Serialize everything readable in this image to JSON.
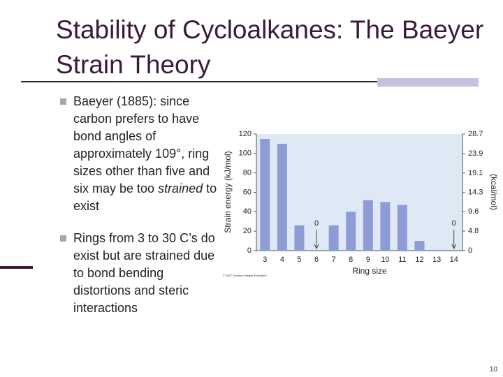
{
  "title": "Stability of Cycloalkanes: The Baeyer Strain Theory",
  "bullets": [
    {
      "segments": [
        {
          "text": "Baeyer (1885): since carbon prefers to have bond angles of approximately 109°, ring sizes other than five and six may be too ",
          "italic": false
        },
        {
          "text": "strained",
          "italic": true
        },
        {
          "text": " to exist",
          "italic": false
        }
      ]
    },
    {
      "segments": [
        {
          "text": "Rings from 3 to 30 C’s do exist but are strained due to bond bending distortions and steric interactions",
          "italic": false
        }
      ]
    }
  ],
  "chart_data": {
    "type": "bar",
    "x_label": "Ring size",
    "y_label": "Strain energy (kJ/mol)",
    "y2_label": "(kcal/mol)",
    "credit": "© 2007 Thomson Higher Education",
    "categories": [
      "3",
      "4",
      "5",
      "6",
      "7",
      "8",
      "9",
      "10",
      "11",
      "12",
      "13",
      "14"
    ],
    "values": [
      115,
      110,
      26,
      0,
      26,
      40,
      52,
      50,
      47,
      10,
      null,
      0
    ],
    "value_labels": [
      null,
      null,
      null,
      "0",
      null,
      null,
      null,
      null,
      null,
      null,
      null,
      "0"
    ],
    "color": "#8e9cd6",
    "plot_background": "#dfe9f6",
    "ylim": [
      0,
      120
    ],
    "yticks": [
      0,
      20,
      40,
      60,
      80,
      100,
      120
    ],
    "y2lim": [
      0,
      28.7
    ],
    "y2ticks": [
      0,
      4.8,
      9.6,
      14.3,
      19.1,
      23.9,
      28.7
    ]
  },
  "page_number": "10"
}
